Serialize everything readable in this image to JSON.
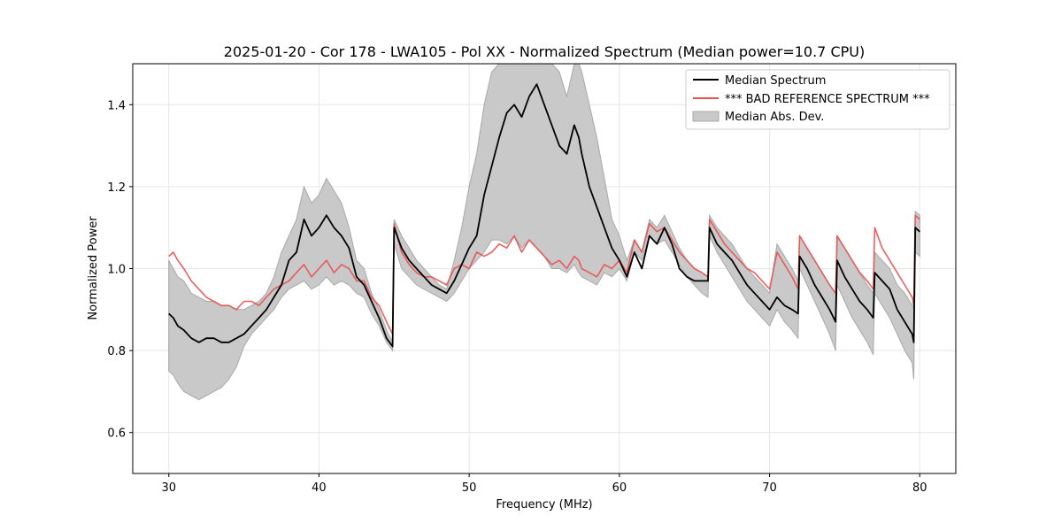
{
  "chart_data": {
    "type": "line",
    "title": "2025-01-20 - Cor 178 - LWA105 - Pol XX - Normalized Spectrum (Median power=10.7 CPU)",
    "xlabel": "Frequency (MHz)",
    "ylabel": "Normalized Power",
    "xlim": [
      27.6,
      82.4
    ],
    "ylim": [
      0.5,
      1.5
    ],
    "xticks": [
      30,
      40,
      50,
      60,
      70,
      80
    ],
    "yticks": [
      0.6,
      0.8,
      1.0,
      1.2,
      1.4
    ],
    "xtick_labels": [
      "30",
      "40",
      "50",
      "60",
      "70",
      "80"
    ],
    "ytick_labels": [
      "0.6",
      "0.8",
      "1.0",
      "1.2",
      "1.4"
    ],
    "grid": true,
    "legend_position": "top-right",
    "legend": [
      {
        "label": "Median Spectrum",
        "kind": "line",
        "color": "#000000"
      },
      {
        "label": "*** BAD REFERENCE SPECTRUM ***",
        "kind": "line",
        "color": "#e8504f"
      },
      {
        "label": "Median Abs. Dev.",
        "kind": "band",
        "color": "#bfbfbf"
      }
    ],
    "series": [
      {
        "name": "Median Spectrum",
        "color": "#000000",
        "x": [
          30.0,
          30.3,
          30.6,
          31.0,
          31.5,
          32.0,
          32.5,
          33.0,
          33.5,
          34.0,
          34.5,
          35.0,
          35.5,
          36.0,
          36.5,
          37.0,
          37.5,
          38.0,
          38.5,
          39.0,
          39.5,
          40.0,
          40.5,
          41.0,
          41.5,
          42.0,
          42.5,
          43.0,
          43.5,
          44.0,
          44.5,
          44.9,
          45.0,
          45.5,
          46.0,
          46.5,
          47.0,
          47.5,
          48.0,
          48.5,
          49.0,
          49.5,
          50.0,
          50.5,
          51.0,
          51.5,
          52.0,
          52.5,
          53.0,
          53.5,
          54.0,
          54.5,
          55.0,
          55.5,
          56.0,
          56.5,
          57.0,
          57.3,
          57.5,
          58.0,
          58.5,
          59.0,
          59.5,
          60.0,
          60.5,
          61.0,
          61.5,
          62.0,
          62.5,
          63.0,
          63.5,
          64.0,
          64.5,
          65.0,
          65.5,
          65.9,
          66.0,
          66.5,
          67.0,
          67.5,
          68.0,
          68.5,
          69.0,
          69.5,
          70.0,
          70.5,
          71.0,
          71.5,
          71.9,
          72.0,
          72.5,
          73.0,
          73.5,
          74.0,
          74.4,
          74.5,
          75.0,
          75.5,
          76.0,
          76.5,
          76.9,
          77.0,
          77.5,
          78.0,
          78.5,
          79.0,
          79.5,
          79.6,
          79.7,
          80.0
        ],
        "values": [
          0.89,
          0.88,
          0.86,
          0.85,
          0.83,
          0.82,
          0.83,
          0.83,
          0.82,
          0.82,
          0.83,
          0.84,
          0.86,
          0.88,
          0.9,
          0.93,
          0.96,
          1.02,
          1.04,
          1.12,
          1.08,
          1.1,
          1.13,
          1.1,
          1.08,
          1.05,
          0.98,
          0.96,
          0.92,
          0.88,
          0.83,
          0.81,
          1.1,
          1.05,
          1.02,
          1.0,
          0.98,
          0.96,
          0.95,
          0.94,
          0.97,
          1.01,
          1.05,
          1.08,
          1.18,
          1.25,
          1.32,
          1.38,
          1.4,
          1.37,
          1.42,
          1.45,
          1.4,
          1.35,
          1.3,
          1.28,
          1.35,
          1.32,
          1.28,
          1.2,
          1.15,
          1.1,
          1.05,
          1.02,
          0.98,
          1.04,
          1.0,
          1.08,
          1.06,
          1.1,
          1.06,
          1.0,
          0.98,
          0.97,
          0.97,
          0.97,
          1.1,
          1.06,
          1.04,
          1.02,
          0.99,
          0.96,
          0.94,
          0.92,
          0.9,
          0.93,
          0.91,
          0.9,
          0.89,
          1.03,
          1.0,
          0.96,
          0.93,
          0.9,
          0.87,
          1.02,
          0.98,
          0.95,
          0.92,
          0.9,
          0.88,
          0.99,
          0.97,
          0.95,
          0.9,
          0.87,
          0.84,
          0.82,
          1.1,
          1.09
        ]
      },
      {
        "name": "*** BAD REFERENCE SPECTRUM ***",
        "color": "#e8504f",
        "x": [
          30.0,
          30.3,
          30.6,
          31.0,
          31.5,
          32.0,
          32.5,
          33.0,
          33.5,
          34.0,
          34.5,
          35.0,
          35.5,
          36.0,
          36.5,
          37.0,
          37.5,
          38.0,
          38.5,
          39.0,
          39.5,
          40.0,
          40.5,
          41.0,
          41.5,
          42.0,
          42.5,
          43.0,
          43.5,
          44.0,
          44.5,
          44.9,
          45.0,
          45.5,
          46.0,
          46.5,
          47.0,
          47.5,
          48.0,
          48.5,
          49.0,
          49.5,
          50.0,
          50.5,
          51.0,
          51.5,
          52.0,
          52.5,
          53.0,
          53.5,
          54.0,
          54.5,
          55.0,
          55.5,
          56.0,
          56.5,
          57.0,
          57.3,
          57.5,
          58.0,
          58.5,
          59.0,
          59.5,
          60.0,
          60.5,
          61.0,
          61.5,
          62.0,
          62.5,
          63.0,
          63.5,
          64.0,
          64.5,
          65.0,
          65.5,
          65.9,
          66.0,
          66.5,
          67.0,
          67.5,
          68.0,
          68.5,
          69.0,
          69.5,
          70.0,
          70.5,
          71.0,
          71.5,
          71.9,
          72.0,
          72.5,
          73.0,
          73.5,
          74.0,
          74.4,
          74.5,
          75.0,
          75.5,
          76.0,
          76.5,
          76.9,
          77.0,
          77.5,
          78.0,
          78.5,
          79.0,
          79.5,
          79.6,
          79.7,
          80.0
        ],
        "values": [
          1.03,
          1.04,
          1.02,
          1.0,
          0.97,
          0.95,
          0.93,
          0.92,
          0.91,
          0.91,
          0.9,
          0.92,
          0.92,
          0.91,
          0.93,
          0.95,
          0.96,
          0.97,
          0.99,
          1.01,
          0.98,
          1.0,
          1.02,
          0.99,
          1.01,
          1.0,
          0.97,
          0.97,
          0.93,
          0.91,
          0.87,
          0.84,
          1.11,
          1.04,
          1.01,
          0.99,
          0.98,
          0.98,
          0.97,
          0.96,
          1.0,
          1.01,
          1.0,
          1.04,
          1.03,
          1.04,
          1.06,
          1.05,
          1.08,
          1.04,
          1.07,
          1.05,
          1.03,
          1.01,
          1.02,
          1.0,
          1.03,
          1.02,
          1.0,
          0.99,
          0.98,
          1.01,
          1.0,
          1.02,
          0.99,
          1.07,
          1.04,
          1.11,
          1.09,
          1.1,
          1.07,
          1.04,
          1.02,
          1.0,
          0.99,
          0.98,
          1.12,
          1.09,
          1.06,
          1.04,
          1.02,
          1.0,
          0.99,
          0.97,
          0.95,
          1.04,
          1.01,
          0.98,
          0.95,
          1.08,
          1.05,
          1.02,
          0.99,
          0.96,
          0.94,
          1.08,
          1.05,
          1.02,
          0.99,
          0.97,
          0.95,
          1.1,
          1.05,
          1.02,
          0.99,
          0.96,
          0.93,
          0.91,
          1.13,
          1.12
        ]
      },
      {
        "name": "Median Abs. Dev.",
        "color": "#bfbfbf",
        "kind": "band",
        "x": [
          30.0,
          30.3,
          30.6,
          31.0,
          31.5,
          32.0,
          32.5,
          33.0,
          33.5,
          34.0,
          34.5,
          35.0,
          35.5,
          36.0,
          36.5,
          37.0,
          37.5,
          38.0,
          38.5,
          39.0,
          39.5,
          40.0,
          40.5,
          41.0,
          41.5,
          42.0,
          42.5,
          43.0,
          43.5,
          44.0,
          44.5,
          44.9,
          45.0,
          45.5,
          46.0,
          46.5,
          47.0,
          47.5,
          48.0,
          48.5,
          49.0,
          49.5,
          50.0,
          50.5,
          51.0,
          51.5,
          52.0,
          52.5,
          53.0,
          53.5,
          54.0,
          54.5,
          55.0,
          55.5,
          56.0,
          56.5,
          57.0,
          57.3,
          57.5,
          58.0,
          58.5,
          59.0,
          59.5,
          60.0,
          60.5,
          61.0,
          61.5,
          62.0,
          62.5,
          63.0,
          63.5,
          64.0,
          64.5,
          65.0,
          65.5,
          65.9,
          66.0,
          66.5,
          67.0,
          67.5,
          68.0,
          68.5,
          69.0,
          69.5,
          70.0,
          70.5,
          71.0,
          71.5,
          71.9,
          72.0,
          72.5,
          73.0,
          73.5,
          74.0,
          74.4,
          74.5,
          75.0,
          75.5,
          76.0,
          76.5,
          76.9,
          77.0,
          77.5,
          78.0,
          78.5,
          79.0,
          79.5,
          79.6,
          79.7,
          80.0
        ],
        "lower": [
          0.75,
          0.74,
          0.72,
          0.7,
          0.69,
          0.68,
          0.69,
          0.7,
          0.71,
          0.73,
          0.76,
          0.81,
          0.84,
          0.86,
          0.88,
          0.9,
          0.93,
          0.95,
          0.96,
          0.97,
          0.95,
          0.96,
          0.98,
          0.96,
          0.97,
          0.96,
          0.94,
          0.93,
          0.89,
          0.86,
          0.82,
          0.8,
          1.06,
          1.0,
          0.98,
          0.96,
          0.95,
          0.94,
          0.93,
          0.92,
          0.94,
          0.97,
          1.0,
          1.02,
          1.04,
          1.07,
          1.07,
          1.06,
          1.08,
          1.05,
          1.07,
          1.05,
          1.03,
          1.0,
          1.0,
          0.99,
          1.01,
          0.99,
          0.98,
          0.97,
          0.96,
          0.99,
          0.98,
          1.0,
          0.97,
          1.04,
          1.02,
          1.08,
          1.06,
          1.07,
          1.04,
          1.01,
          0.98,
          0.96,
          0.94,
          0.93,
          1.08,
          1.04,
          1.01,
          0.98,
          0.95,
          0.92,
          0.9,
          0.88,
          0.86,
          0.9,
          0.87,
          0.85,
          0.83,
          1.0,
          0.96,
          0.92,
          0.88,
          0.84,
          0.8,
          0.96,
          0.92,
          0.88,
          0.85,
          0.82,
          0.79,
          0.94,
          0.91,
          0.88,
          0.84,
          0.8,
          0.77,
          0.73,
          1.04,
          1.03
        ],
        "upper": [
          1.02,
          1.0,
          0.98,
          0.97,
          0.94,
          0.93,
          0.92,
          0.92,
          0.91,
          0.91,
          0.9,
          0.9,
          0.91,
          0.92,
          0.94,
          0.98,
          1.04,
          1.08,
          1.12,
          1.2,
          1.16,
          1.18,
          1.22,
          1.19,
          1.16,
          1.1,
          1.02,
          1.0,
          0.94,
          0.9,
          0.85,
          0.82,
          1.12,
          1.08,
          1.05,
          1.02,
          1.0,
          0.98,
          0.96,
          0.95,
          1.02,
          1.1,
          1.2,
          1.28,
          1.4,
          1.48,
          1.5,
          1.5,
          1.5,
          1.5,
          1.5,
          1.5,
          1.5,
          1.5,
          1.48,
          1.42,
          1.5,
          1.5,
          1.48,
          1.4,
          1.32,
          1.22,
          1.12,
          1.08,
          1.02,
          1.07,
          1.04,
          1.12,
          1.1,
          1.13,
          1.09,
          1.05,
          1.02,
          1.0,
          0.99,
          0.98,
          1.13,
          1.1,
          1.08,
          1.06,
          1.03,
          1.0,
          0.98,
          0.96,
          0.94,
          1.06,
          1.03,
          1.0,
          0.97,
          1.08,
          1.05,
          1.02,
          0.99,
          0.96,
          0.94,
          1.08,
          1.05,
          1.02,
          0.99,
          0.96,
          0.94,
          1.04,
          1.02,
          1.0,
          0.96,
          0.94,
          0.91,
          0.9,
          1.14,
          1.13
        ]
      }
    ]
  }
}
